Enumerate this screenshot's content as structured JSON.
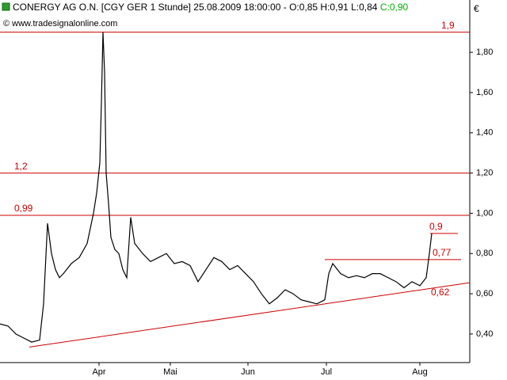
{
  "chart_data": {
    "type": "line",
    "title": "CONERGY AG O.N. [CGY GER  1 Stunde] 25.08.2009 18:00:00 - O:0,85 H:0,91 L:0,84",
    "close_label": "C:0,90",
    "subtitle": "© www.tradesignalonline.com",
    "y_unit": "€",
    "series": [
      {
        "color": "#000000",
        "x": [
          0,
          10,
          20,
          30,
          40,
          50,
          55,
          60,
          65,
          70,
          75,
          80,
          90,
          100,
          110,
          118,
          122,
          126,
          128,
          130,
          132,
          134,
          137,
          140,
          145,
          150,
          155,
          160,
          165,
          170,
          180,
          190,
          200,
          210,
          220,
          230,
          240,
          250,
          260,
          270,
          280,
          290,
          300,
          310,
          320,
          330,
          340,
          350,
          360,
          370,
          380,
          390,
          400,
          410,
          415,
          420,
          430,
          440,
          450,
          460,
          470,
          480,
          490,
          500,
          510,
          520,
          530,
          538,
          542,
          545
        ],
        "values": [
          0.45,
          0.44,
          0.4,
          0.38,
          0.36,
          0.37,
          0.55,
          0.95,
          0.8,
          0.72,
          0.68,
          0.7,
          0.75,
          0.78,
          0.85,
          1.0,
          1.1,
          1.25,
          1.55,
          1.9,
          1.7,
          1.2,
          1.05,
          0.88,
          0.82,
          0.8,
          0.72,
          0.68,
          0.98,
          0.85,
          0.8,
          0.76,
          0.78,
          0.8,
          0.75,
          0.76,
          0.74,
          0.66,
          0.72,
          0.78,
          0.76,
          0.72,
          0.74,
          0.7,
          0.66,
          0.6,
          0.55,
          0.58,
          0.62,
          0.6,
          0.57,
          0.56,
          0.55,
          0.57,
          0.7,
          0.75,
          0.7,
          0.68,
          0.69,
          0.68,
          0.7,
          0.7,
          0.68,
          0.66,
          0.63,
          0.66,
          0.64,
          0.68,
          0.8,
          0.9
        ]
      }
    ],
    "levels": [
      {
        "value": 1.9,
        "label": "1,9",
        "x_from": 0,
        "x_to": 593,
        "label_side": "right"
      },
      {
        "value": 1.2,
        "label": "1,2",
        "x_from": 0,
        "x_to": 593,
        "label_side": "left"
      },
      {
        "value": 0.99,
        "label": "0,99",
        "x_from": 0,
        "x_to": 593,
        "label_side": "left"
      },
      {
        "value": 0.9,
        "label": "0,9",
        "x_from": 543,
        "x_to": 578,
        "label_side": "right"
      },
      {
        "value": 0.77,
        "label": "0,77",
        "x_from": 410,
        "x_to": 582,
        "label_side": "right"
      }
    ],
    "level_color": "#cc0000",
    "trendline": {
      "x": [
        37,
        593
      ],
      "values": [
        0.335,
        0.655
      ]
    },
    "annotations": [
      {
        "text": "0,62",
        "x": 544,
        "y": 0.62
      }
    ],
    "xlim": [
      0,
      593
    ],
    "xticks": [
      {
        "value": 125,
        "label": "Apr"
      },
      {
        "value": 215,
        "label": "Mai"
      },
      {
        "value": 313,
        "label": "Jun"
      },
      {
        "value": 412,
        "label": "Jul"
      },
      {
        "value": 530,
        "label": "Aug"
      }
    ],
    "ylim": [
      0.258,
      2.06
    ],
    "yticks": [
      {
        "value": 0.4,
        "label": "0,40"
      },
      {
        "value": 0.6,
        "label": "0,60"
      },
      {
        "value": 0.8,
        "label": "0,80"
      },
      {
        "value": 1.0,
        "label": "1,00"
      },
      {
        "value": 1.2,
        "label": "1,20"
      },
      {
        "value": 1.4,
        "label": "1,40"
      },
      {
        "value": 1.6,
        "label": "1,60"
      },
      {
        "value": 1.8,
        "label": "1,80"
      }
    ]
  }
}
